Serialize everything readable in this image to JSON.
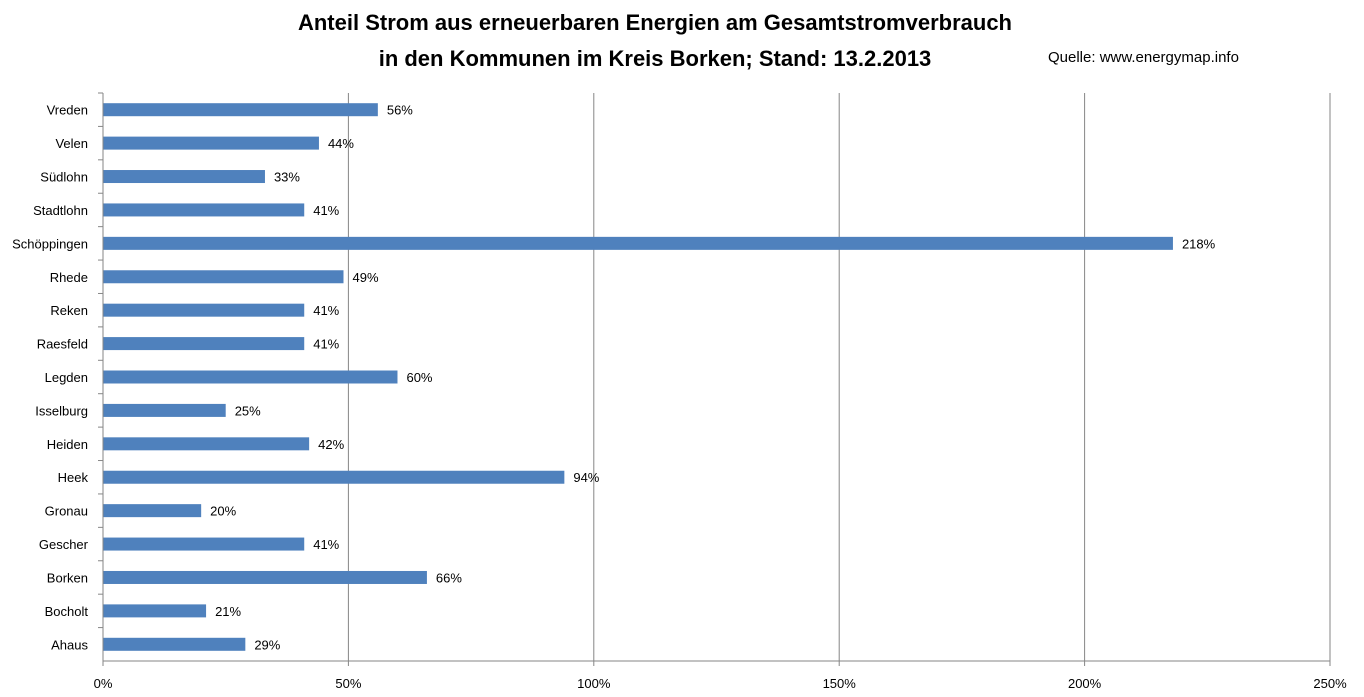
{
  "chart_data": {
    "type": "bar",
    "orientation": "horizontal",
    "title": "Anteil Strom aus erneuerbaren Energien am Gesamtstromverbrauch",
    "subtitle": "in den Kommunen im Kreis Borken; Stand: 13.2.2013",
    "source": "Quelle: www.energymap.info",
    "xlabel": "",
    "ylabel": "",
    "categories": [
      "Vreden",
      "Velen",
      "Südlohn",
      "Stadtlohn",
      "Schöppingen",
      "Rhede",
      "Reken",
      "Raesfeld",
      "Legden",
      "Isselburg",
      "Heiden",
      "Heek",
      "Gronau",
      "Gescher",
      "Borken",
      "Bocholt",
      "Ahaus"
    ],
    "values": [
      56,
      44,
      33,
      41,
      218,
      49,
      41,
      41,
      60,
      25,
      42,
      94,
      20,
      41,
      66,
      21,
      29
    ],
    "value_labels": [
      "56%",
      "44%",
      "33%",
      "41%",
      "218%",
      "49%",
      "41%",
      "41%",
      "60%",
      "25%",
      "42%",
      "94%",
      "20%",
      "41%",
      "66%",
      "21%",
      "29%"
    ],
    "xlim": [
      0,
      250
    ],
    "x_ticks": [
      0,
      50,
      100,
      150,
      200,
      250
    ],
    "x_tick_labels": [
      "0%",
      "50%",
      "100%",
      "150%",
      "200%",
      "250%"
    ],
    "grid": "vertical major gridlines",
    "legend": "none",
    "bar_color": "#4F81BD",
    "grid_color": "#868686"
  }
}
